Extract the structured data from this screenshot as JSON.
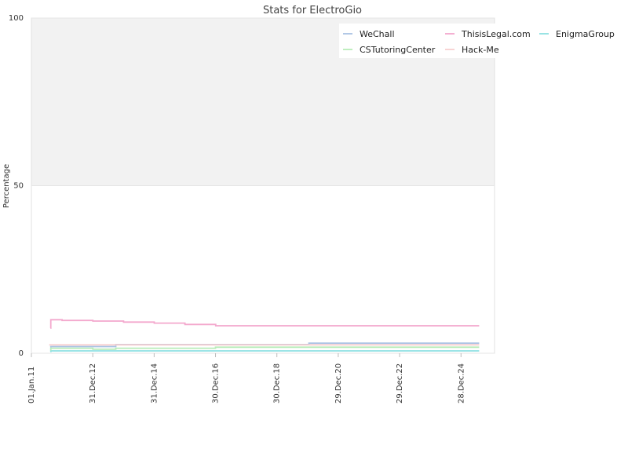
{
  "chart_data": {
    "type": "line",
    "title": "Stats for ElectroGio",
    "xlabel": "",
    "ylabel": "Percentage",
    "ylim": [
      0,
      100
    ],
    "y_ticks": [
      0,
      50,
      100
    ],
    "y_tick_labels": [
      "0",
      "50",
      "100"
    ],
    "xlim": [
      "2011-01-01",
      "2026-01-31"
    ],
    "x_ticks": [
      "2011-01-01",
      "2012-12-31",
      "2014-12-31",
      "2016-12-30",
      "2018-12-30",
      "2020-12-29",
      "2022-12-29",
      "2024-12-28"
    ],
    "x_tick_labels": [
      "01.Jan.11",
      "31.Dec.12",
      "31.Dec.14",
      "30.Dec.16",
      "30.Dec.18",
      "29.Dec.20",
      "29.Dec.22",
      "28.Dec.24"
    ],
    "background_bands": [
      {
        "from": 50,
        "to": 100,
        "color": "#f2f2f2"
      }
    ],
    "grid": false,
    "legend_position": "top-right",
    "series": [
      {
        "name": "WeChall",
        "color": "#a9c2e4",
        "x": [
          "2011-08-15",
          "2011-08-20",
          "2013-10-01",
          "2020-01-15",
          "2025-08-01"
        ],
        "y": [
          1.8,
          2.0,
          2.6,
          3.0,
          3.0
        ]
      },
      {
        "name": "ThisisLegal.com",
        "color": "#f3a8cd",
        "x": [
          "2011-08-15",
          "2011-08-20",
          "2012-01-01",
          "2013-01-01",
          "2014-01-01",
          "2015-01-01",
          "2016-01-01",
          "2017-01-01",
          "2025-08-01"
        ],
        "y": [
          7.5,
          10.0,
          9.8,
          9.6,
          9.3,
          9.0,
          8.6,
          8.2,
          8.2
        ]
      },
      {
        "name": "EnigmaGroup",
        "color": "#8ee0e2",
        "x": [
          "2011-08-15",
          "2011-08-20",
          "2025-08-01"
        ],
        "y": [
          0.5,
          0.7,
          0.7
        ]
      },
      {
        "name": "CSTutoringCenter",
        "color": "#b8ecb8",
        "x": [
          "2011-08-15",
          "2011-08-20",
          "2013-01-01",
          "2013-10-01",
          "2016-12-30",
          "2025-08-01"
        ],
        "y": [
          1.0,
          1.5,
          1.2,
          1.5,
          1.8,
          1.8
        ]
      },
      {
        "name": "Hack-Me",
        "color": "#f7cfcf",
        "x": [
          "2011-08-01",
          "2025-08-01"
        ],
        "y": [
          2.5,
          2.5
        ]
      }
    ]
  }
}
